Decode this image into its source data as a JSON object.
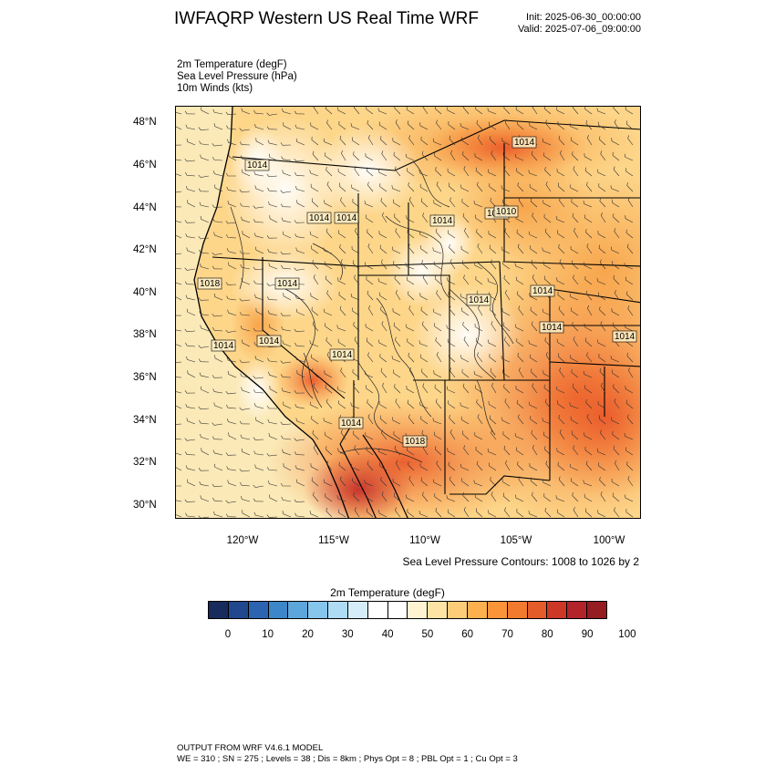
{
  "title": "IWFAQRP Western US Real Time WRF",
  "init": "Init: 2025-06-30_00:00:00",
  "valid": "Valid: 2025-07-06_09:00:00",
  "fields": {
    "temperature": "2m Temperature   (degF)",
    "pressure": "Sea Level Pressure   (hPa)",
    "winds": "10m Winds   (kts)"
  },
  "map": {
    "lat_labels": [
      "48°N",
      "46°N",
      "44°N",
      "42°N",
      "40°N",
      "38°N",
      "36°N",
      "34°N",
      "32°N",
      "30°N"
    ],
    "lon_labels": [
      "120°W",
      "115°W",
      "110°W",
      "105°W",
      "100°W"
    ],
    "pressure_labels": [
      "1014",
      "1014",
      "1014",
      "1014",
      "1014",
      "1010",
      "1018",
      "1014",
      "1014",
      "1014",
      "1014",
      "1014",
      "1014",
      "1014",
      "1014",
      "1014",
      "1014",
      "1018"
    ],
    "ocean_color": "#fbe9b7",
    "land_base_color": "#fdd68a",
    "hot_color": "#f58630",
    "very_hot_color": "#d23a23",
    "cool_color": "#ffffff"
  },
  "contour_note": "Sea Level Pressure Contours: 1008 to 1026 by 2",
  "colorbar": {
    "title": "2m Temperature   (degF)",
    "colors": [
      "#172c5c",
      "#21478f",
      "#2c64b2",
      "#3d86c8",
      "#5ca6dc",
      "#86c5ec",
      "#aedcf4",
      "#d5edf9",
      "#ffffff",
      "#ffffff",
      "#fff3d2",
      "#fee4a4",
      "#fdcc78",
      "#fcb04e",
      "#f99538",
      "#f27a2e",
      "#e35c2a",
      "#cc3726",
      "#b3232a",
      "#951c20"
    ],
    "labels": [
      "0",
      "10",
      "20",
      "30",
      "40",
      "50",
      "60",
      "70",
      "80",
      "90",
      "100"
    ]
  },
  "footer": {
    "line1": "OUTPUT FROM WRF V4.6.1 MODEL",
    "line2": "WE = 310 ; SN = 275 ; Levels = 38 ; Dis = 8km ; Phys Opt = 8 ; PBL Opt = 1 ; Cu Opt = 3"
  }
}
